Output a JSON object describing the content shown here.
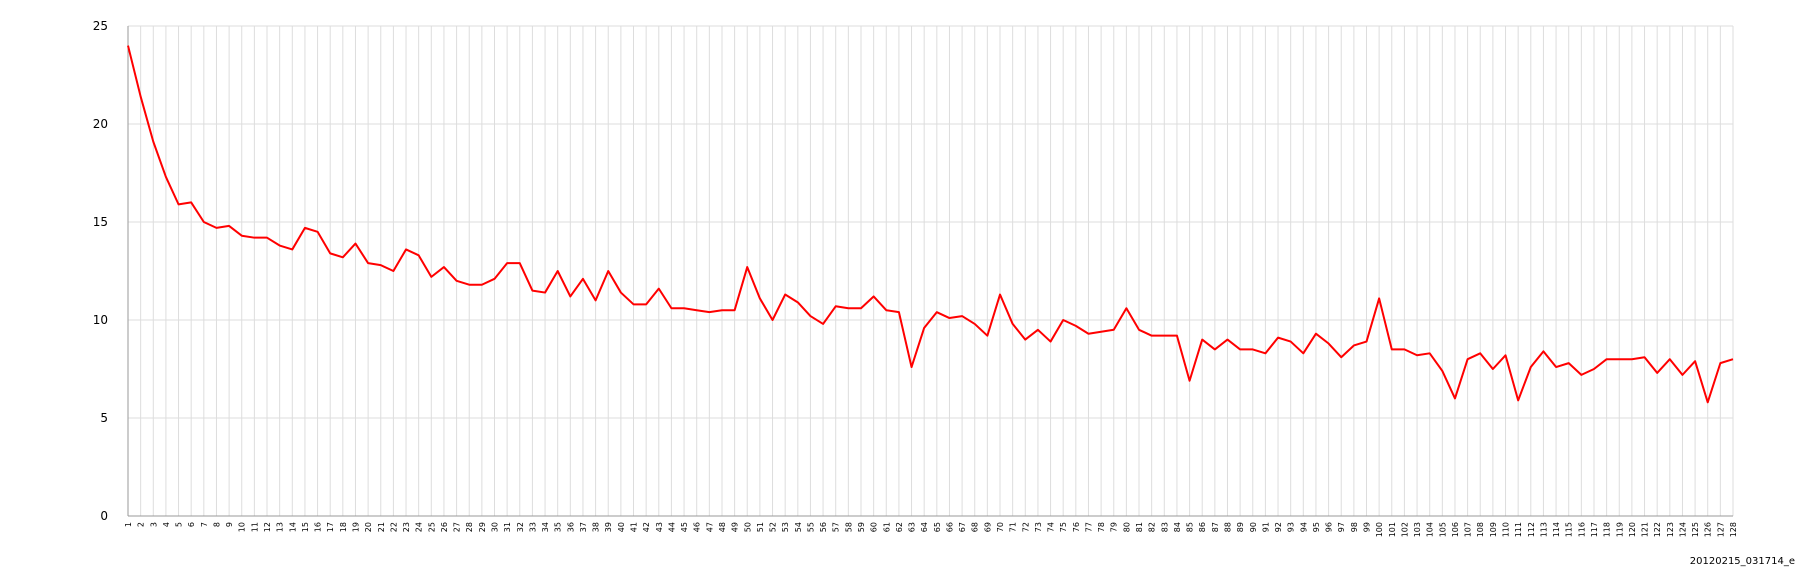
{
  "chart_data": {
    "type": "line",
    "title": "",
    "xlabel": "",
    "ylabel": "",
    "ylim": [
      0,
      25
    ],
    "yticks": [
      0,
      5,
      10,
      15,
      20,
      25
    ],
    "grid": true,
    "x": [
      1,
      2,
      3,
      4,
      5,
      6,
      7,
      8,
      9,
      10,
      11,
      12,
      13,
      14,
      15,
      16,
      17,
      18,
      19,
      20,
      21,
      22,
      23,
      24,
      25,
      26,
      27,
      28,
      29,
      30,
      31,
      32,
      33,
      34,
      35,
      36,
      37,
      38,
      39,
      40,
      41,
      42,
      43,
      44,
      45,
      46,
      47,
      48,
      49,
      50,
      51,
      52,
      53,
      54,
      55,
      56,
      57,
      58,
      59,
      60,
      61,
      62,
      63,
      64,
      65,
      66,
      67,
      68,
      69,
      70,
      71,
      72,
      73,
      74,
      75,
      76,
      77,
      78,
      79,
      80,
      81,
      82,
      83,
      84,
      85,
      86,
      87,
      88,
      89,
      90,
      91,
      92,
      93,
      94,
      95,
      96,
      97,
      98,
      99,
      100,
      101,
      102,
      103,
      104,
      105,
      106,
      107,
      108,
      109,
      110,
      111,
      112,
      113,
      114,
      115,
      116,
      117,
      118,
      119,
      120,
      121,
      122,
      123,
      124,
      125,
      126,
      127,
      128
    ],
    "series": [
      {
        "color": "#ff0000",
        "values": [
          24.0,
          21.4,
          19.1,
          17.3,
          15.9,
          16.0,
          15.0,
          14.7,
          14.8,
          14.3,
          14.2,
          14.2,
          13.8,
          13.6,
          14.7,
          14.5,
          13.4,
          13.2,
          13.9,
          12.9,
          12.8,
          12.5,
          13.6,
          13.3,
          12.2,
          12.7,
          12.0,
          11.8,
          11.8,
          12.1,
          12.9,
          12.9,
          11.5,
          11.4,
          12.5,
          11.2,
          12.1,
          11.0,
          12.5,
          11.4,
          10.8,
          10.8,
          11.6,
          10.6,
          10.6,
          10.5,
          10.4,
          10.5,
          10.5,
          12.7,
          11.1,
          10.0,
          11.3,
          10.9,
          10.2,
          9.8,
          10.7,
          10.6,
          10.6,
          11.2,
          10.5,
          10.4,
          7.6,
          9.6,
          10.4,
          10.1,
          10.2,
          9.8,
          9.2,
          11.3,
          9.8,
          9.0,
          9.5,
          8.9,
          10.0,
          9.7,
          9.3,
          9.4,
          9.5,
          10.6,
          9.5,
          9.2,
          9.2,
          9.2,
          6.9,
          9.0,
          8.5,
          9.0,
          8.5,
          8.5,
          8.3,
          9.1,
          8.9,
          8.3,
          9.3,
          8.8,
          8.1,
          8.7,
          8.9,
          11.1,
          8.5,
          8.5,
          8.2,
          8.3,
          7.4,
          6.0,
          8.0,
          8.3,
          7.5,
          8.2,
          5.9,
          7.6,
          8.4,
          7.6,
          7.8,
          7.2,
          7.5,
          8.0,
          8.0,
          8.0,
          8.1,
          7.3,
          8.0,
          7.2,
          7.9,
          5.8,
          7.8,
          8.0
        ]
      }
    ]
  },
  "caption": "20120215_031714_e"
}
